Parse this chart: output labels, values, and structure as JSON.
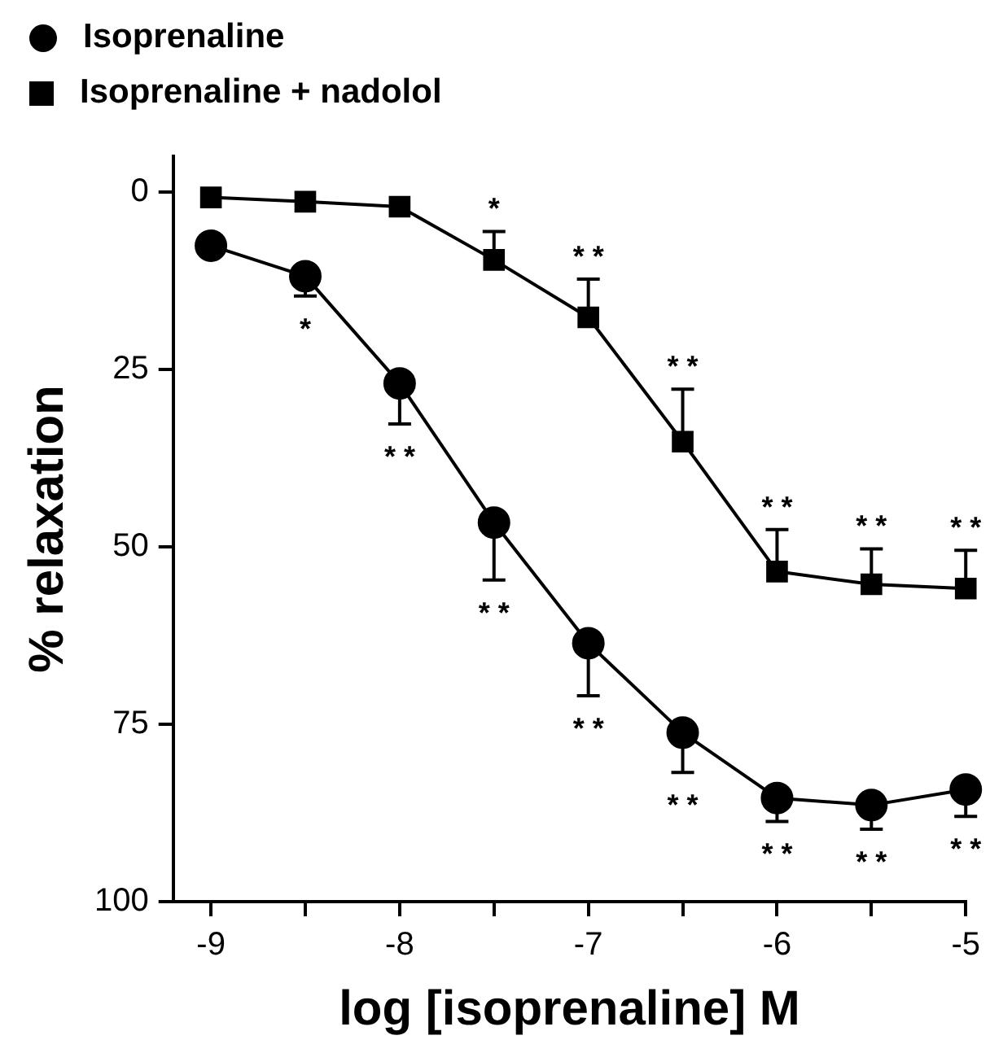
{
  "chart_data": {
    "type": "line",
    "xlabel": "log [isoprenaline] M",
    "ylabel": "% relaxation",
    "x": [
      -9,
      -8.5,
      -8,
      -7.5,
      -7,
      -6.5,
      -6,
      -5.5,
      -5
    ],
    "series": [
      {
        "name": "Isoprenaline",
        "color": "#000000",
        "marker": "circle",
        "values": [
          7.6,
          11.9,
          27.0,
          46.6,
          63.6,
          76.2,
          85.4,
          86.4,
          84.2
        ],
        "errors": [
          null,
          [
            11.9,
            14.7
          ],
          [
            27.0,
            32.7
          ],
          [
            46.6,
            54.7
          ],
          [
            63.6,
            71.0
          ],
          [
            76.2,
            81.8
          ],
          [
            85.4,
            88.7
          ],
          [
            86.4,
            89.8
          ],
          [
            84.2,
            88.0
          ]
        ]
      },
      {
        "name": "Isoprenaline + nadolol",
        "color": "#000000",
        "marker": "square",
        "values": [
          0.8,
          1.4,
          2.1,
          9.6,
          17.7,
          35.2,
          53.5,
          55.3,
          55.9
        ],
        "errors": [
          null,
          null,
          null,
          [
            5.6,
            9.6
          ],
          [
            12.3,
            17.7
          ],
          [
            27.8,
            35.2
          ],
          [
            47.6,
            53.5
          ],
          [
            50.3,
            55.3
          ],
          [
            50.5,
            55.9
          ]
        ]
      }
    ],
    "xlim": [
      -9.2,
      -5
    ],
    "xticks": [
      -9,
      {
        "value": -8.5,
        "label": null
      },
      -8,
      {
        "value": -7.5,
        "label": null
      },
      -7,
      {
        "value": -6.5,
        "label": null
      },
      -6,
      {
        "value": -5.5,
        "label": null
      },
      -5
    ],
    "ylim": [
      100,
      -5
    ],
    "yticks": [
      0,
      25,
      50,
      75,
      100
    ],
    "grid": false,
    "legend": "top left",
    "line_style": "solid",
    "annotations": [
      {
        "text": "*",
        "x": -8.5,
        "y": 11.9
      },
      {
        "text": "* *",
        "x": -8,
        "y": 27.0
      },
      {
        "text": "* *",
        "x": -7.5,
        "y": 46.6
      },
      {
        "text": "* *",
        "x": -7,
        "y": 63.6
      },
      {
        "text": "* *",
        "x": -6.5,
        "y": 76.2
      },
      {
        "text": "* *",
        "x": -6,
        "y": 85.4
      },
      {
        "text": "* *",
        "x": -5.5,
        "y": 86.4
      },
      {
        "text": "* *",
        "x": -5,
        "y": 84.2
      },
      {
        "text": "*",
        "x": -7.5,
        "y": 9.6
      },
      {
        "text": "* *",
        "x": -7,
        "y": 17.7
      },
      {
        "text": "* *",
        "x": -6.5,
        "y": 35.2
      },
      {
        "text": "* *",
        "x": -6,
        "y": 53.5
      },
      {
        "text": "* *",
        "x": -5.5,
        "y": 55.3
      },
      {
        "text": "* *",
        "x": -5,
        "y": 55.9
      }
    ]
  }
}
